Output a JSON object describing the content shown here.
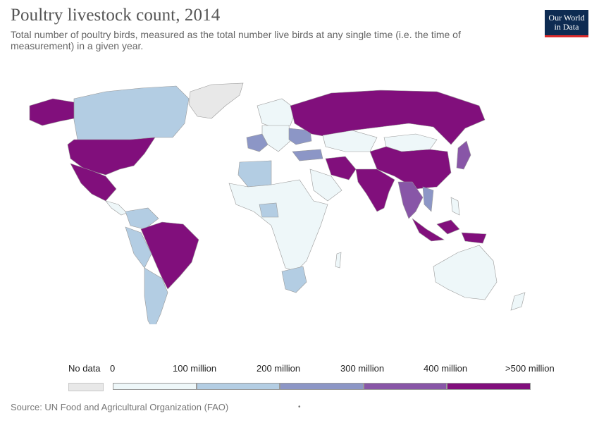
{
  "header": {
    "title": "Poultry livestock count, 2014",
    "subtitle": "Total number of poultry birds, measured as the total number live birds at any single time (i.e. the time of measurement) in a given year.",
    "logo_line1": "Our World",
    "logo_line2": "in Data"
  },
  "legend": {
    "no_data_label": "No data",
    "tick_labels": [
      "0",
      "100 million",
      "200 million",
      "300 million",
      "400 million",
      ">500 million"
    ],
    "bins": [
      {
        "range": "0–100 million",
        "color": "#eef7f9"
      },
      {
        "range": "100–200 million",
        "color": "#b3cde3"
      },
      {
        "range": "200–300 million",
        "color": "#8c96c6"
      },
      {
        "range": "300–400 million",
        "color": "#8856a7"
      },
      {
        "range": ">400 million",
        "color": "#810f7c"
      }
    ],
    "no_data_color": "#e8e8e8"
  },
  "footer": {
    "source": "Source: UN Food and Agricultural Organization (FAO)",
    "dot": "•"
  },
  "map_regions": [
    {
      "name": "United States",
      "bin": 4
    },
    {
      "name": "Mexico",
      "bin": 4
    },
    {
      "name": "Brazil",
      "bin": 4
    },
    {
      "name": "Russia",
      "bin": 4
    },
    {
      "name": "China",
      "bin": 4
    },
    {
      "name": "India",
      "bin": 4
    },
    {
      "name": "Indonesia",
      "bin": 4
    },
    {
      "name": "Iran",
      "bin": 4
    },
    {
      "name": "Japan",
      "bin": 3
    },
    {
      "name": "Thailand",
      "bin": 3
    },
    {
      "name": "Vietnam",
      "bin": 2
    },
    {
      "name": "France",
      "bin": 2
    },
    {
      "name": "Ukraine",
      "bin": 2
    },
    {
      "name": "Turkey",
      "bin": 2
    },
    {
      "name": "Canada",
      "bin": 1
    },
    {
      "name": "Argentina",
      "bin": 1
    },
    {
      "name": "South Africa",
      "bin": 1
    },
    {
      "name": "Nigeria",
      "bin": 1
    },
    {
      "name": "Algeria",
      "bin": 1
    },
    {
      "name": "Colombia",
      "bin": 1
    },
    {
      "name": "Peru",
      "bin": 1
    },
    {
      "name": "Australia",
      "bin": 0
    },
    {
      "name": "Kazakhstan",
      "bin": 0
    },
    {
      "name": "Mongolia",
      "bin": 0
    },
    {
      "name": "Greenland",
      "bin": "no_data"
    }
  ]
}
